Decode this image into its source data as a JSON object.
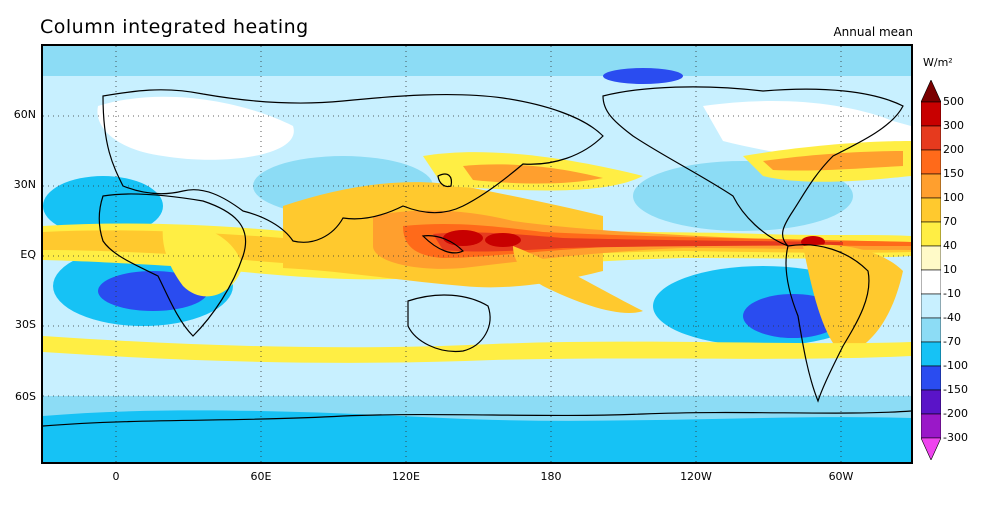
{
  "title": "Column integrated heating",
  "subtitle": "Annual mean",
  "units": "W/m²",
  "axes": {
    "lat_labels": [
      "60N",
      "30N",
      "EQ",
      "30S",
      "60S"
    ],
    "lon_labels": [
      "0",
      "60E",
      "120E",
      "180",
      "120W",
      "60W"
    ]
  },
  "colorbar": {
    "levels": [
      "500",
      "300",
      "200",
      "150",
      "100",
      "70",
      "40",
      "10",
      "-10",
      "-40",
      "-70",
      "-100",
      "-150",
      "-200",
      "-300"
    ],
    "colors": [
      "#7a0000",
      "#c80000",
      "#e63a1e",
      "#ff6a1a",
      "#ff9f2e",
      "#ffc92e",
      "#ffee44",
      "#fffac8",
      "#ffffff",
      "#c8f0ff",
      "#8cdcf5",
      "#16c2f5",
      "#2a4cf0",
      "#5a14c8",
      "#9a18c8",
      "#ee44ee"
    ]
  }
}
